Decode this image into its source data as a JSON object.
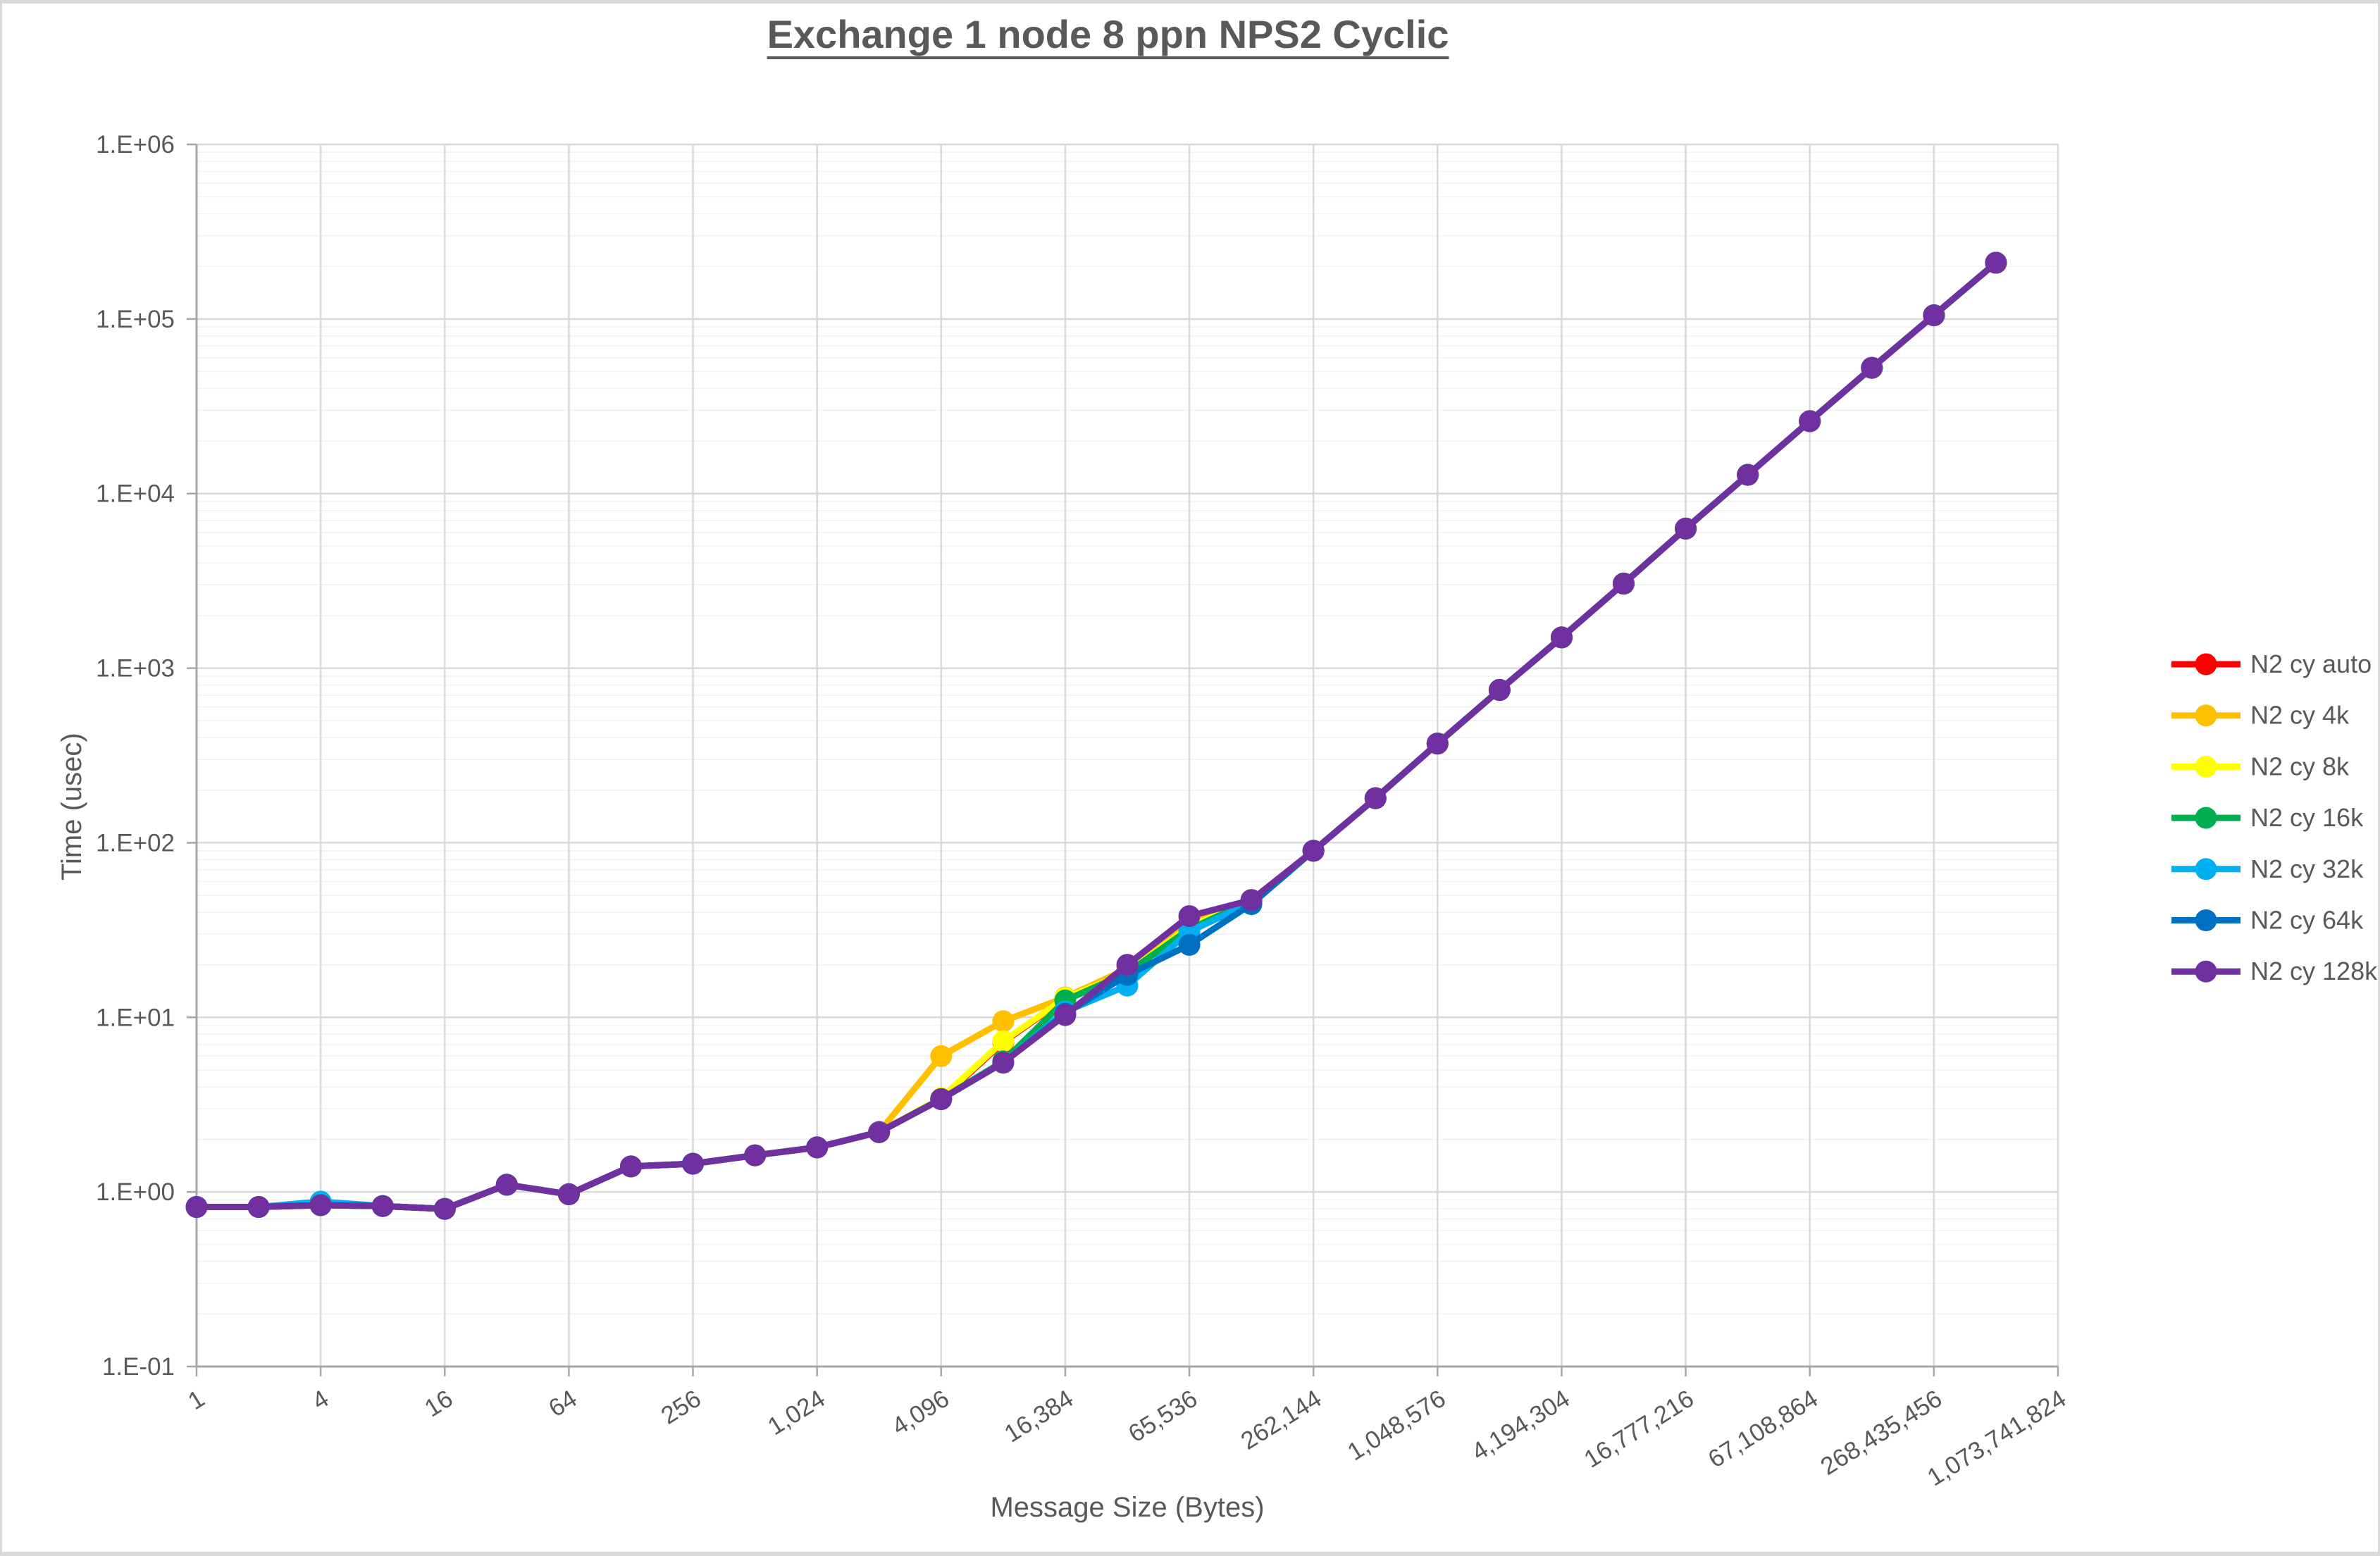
{
  "chart_data": {
    "type": "line",
    "title": "Exchange 1 node 8 ppn NPS2 Cyclic",
    "xlabel": "Message Size (Bytes)",
    "ylabel": "Time (usec)",
    "x_axis": {
      "scale": "categorical-log2",
      "tick_labels": [
        "1",
        "4",
        "16",
        "64",
        "256",
        "1,024",
        "4,096",
        "16,384",
        "65,536",
        "262,144",
        "1,048,576",
        "4,194,304",
        "16,777,216",
        "67,108,864",
        "268,435,456",
        "1,073,741,824"
      ]
    },
    "y_axis": {
      "scale": "log10",
      "min": 0.1,
      "max": 1000000,
      "tick_labels": [
        "1.E+06",
        "1.E+05",
        "1.E+04",
        "1.E+03",
        "1.E+02",
        "1.E+01",
        "1.E+00",
        "1.E-01"
      ]
    },
    "grid": "major-and-minor-log",
    "legend_position": "right",
    "sizes": [
      1,
      2,
      4,
      8,
      16,
      32,
      64,
      128,
      256,
      512,
      1024,
      2048,
      4096,
      8192,
      16384,
      32768,
      65536,
      131072,
      262144,
      524288,
      1048576,
      2097152,
      4194304,
      8388608,
      16777216,
      33554432,
      67108864,
      134217728,
      268435456,
      536870912
    ],
    "series": [
      {
        "name": "N2 cy auto",
        "color": "#FF0000",
        "values": [
          0.82,
          0.82,
          0.84,
          0.83,
          0.8,
          1.1,
          0.97,
          1.4,
          1.45,
          1.62,
          1.8,
          2.2,
          3.4,
          7.2,
          12.8,
          18.5,
          33.0,
          46.5,
          90,
          180,
          370,
          750,
          1500,
          3050,
          6300,
          12800,
          26000,
          52500,
          105000,
          210000
        ]
      },
      {
        "name": "N2 cy 4k",
        "color": "#FFC000",
        "values": [
          0.82,
          0.82,
          0.84,
          0.83,
          0.8,
          1.1,
          0.97,
          1.4,
          1.45,
          1.62,
          1.8,
          2.2,
          6.0,
          9.5,
          13.0,
          19.0,
          37.0,
          47.0,
          90,
          180,
          370,
          750,
          1500,
          3050,
          6300,
          12800,
          26000,
          52500,
          105000,
          210000
        ]
      },
      {
        "name": "N2 cy 8k",
        "color": "#FFFF00",
        "values": [
          0.82,
          0.82,
          0.84,
          0.83,
          0.8,
          1.1,
          0.97,
          1.4,
          1.45,
          1.62,
          1.8,
          2.2,
          3.45,
          7.3,
          12.9,
          18.0,
          33.0,
          46.8,
          90,
          180,
          370,
          750,
          1500,
          3050,
          6300,
          12800,
          26000,
          52500,
          105000,
          210000
        ]
      },
      {
        "name": "N2 cy 16k",
        "color": "#00B050",
        "values": [
          0.82,
          0.82,
          0.84,
          0.83,
          0.8,
          1.1,
          0.97,
          1.4,
          1.45,
          1.62,
          1.8,
          2.2,
          3.4,
          5.6,
          12.5,
          18.0,
          32.0,
          46.5,
          90,
          180,
          370,
          750,
          1500,
          3050,
          6300,
          12800,
          26000,
          52500,
          105000,
          210000
        ]
      },
      {
        "name": "N2 cy 32k",
        "color": "#00B0F0",
        "values": [
          0.82,
          0.82,
          0.88,
          0.83,
          0.8,
          1.1,
          0.97,
          1.4,
          1.45,
          1.62,
          1.8,
          2.2,
          3.4,
          5.5,
          10.8,
          15.2,
          31.0,
          45.5,
          90,
          180,
          370,
          750,
          1500,
          3050,
          6300,
          12800,
          26000,
          52500,
          105000,
          210000
        ]
      },
      {
        "name": "N2 cy 64k",
        "color": "#0070C0",
        "values": [
          0.82,
          0.82,
          0.84,
          0.83,
          0.8,
          1.1,
          0.97,
          1.4,
          1.45,
          1.62,
          1.8,
          2.2,
          3.4,
          5.5,
          10.5,
          17.5,
          26.0,
          44.5,
          90,
          180,
          370,
          750,
          1500,
          3050,
          6300,
          12800,
          26000,
          52500,
          105000,
          210000
        ]
      },
      {
        "name": "N2 cy 128k",
        "color": "#7030A0",
        "values": [
          0.82,
          0.82,
          0.84,
          0.83,
          0.8,
          1.1,
          0.97,
          1.4,
          1.45,
          1.62,
          1.8,
          2.2,
          3.4,
          5.5,
          10.3,
          20.0,
          38.0,
          47.0,
          90,
          180,
          370,
          750,
          1500,
          3050,
          6300,
          12800,
          26000,
          52500,
          105000,
          210000
        ]
      }
    ],
    "style": {
      "text_color": "#595959",
      "major_grid_color": "#D9D9D9",
      "minor_grid_color": "#F2F2F2",
      "axis_line_color": "#A6A6A6",
      "background": "#FFFFFF"
    }
  }
}
